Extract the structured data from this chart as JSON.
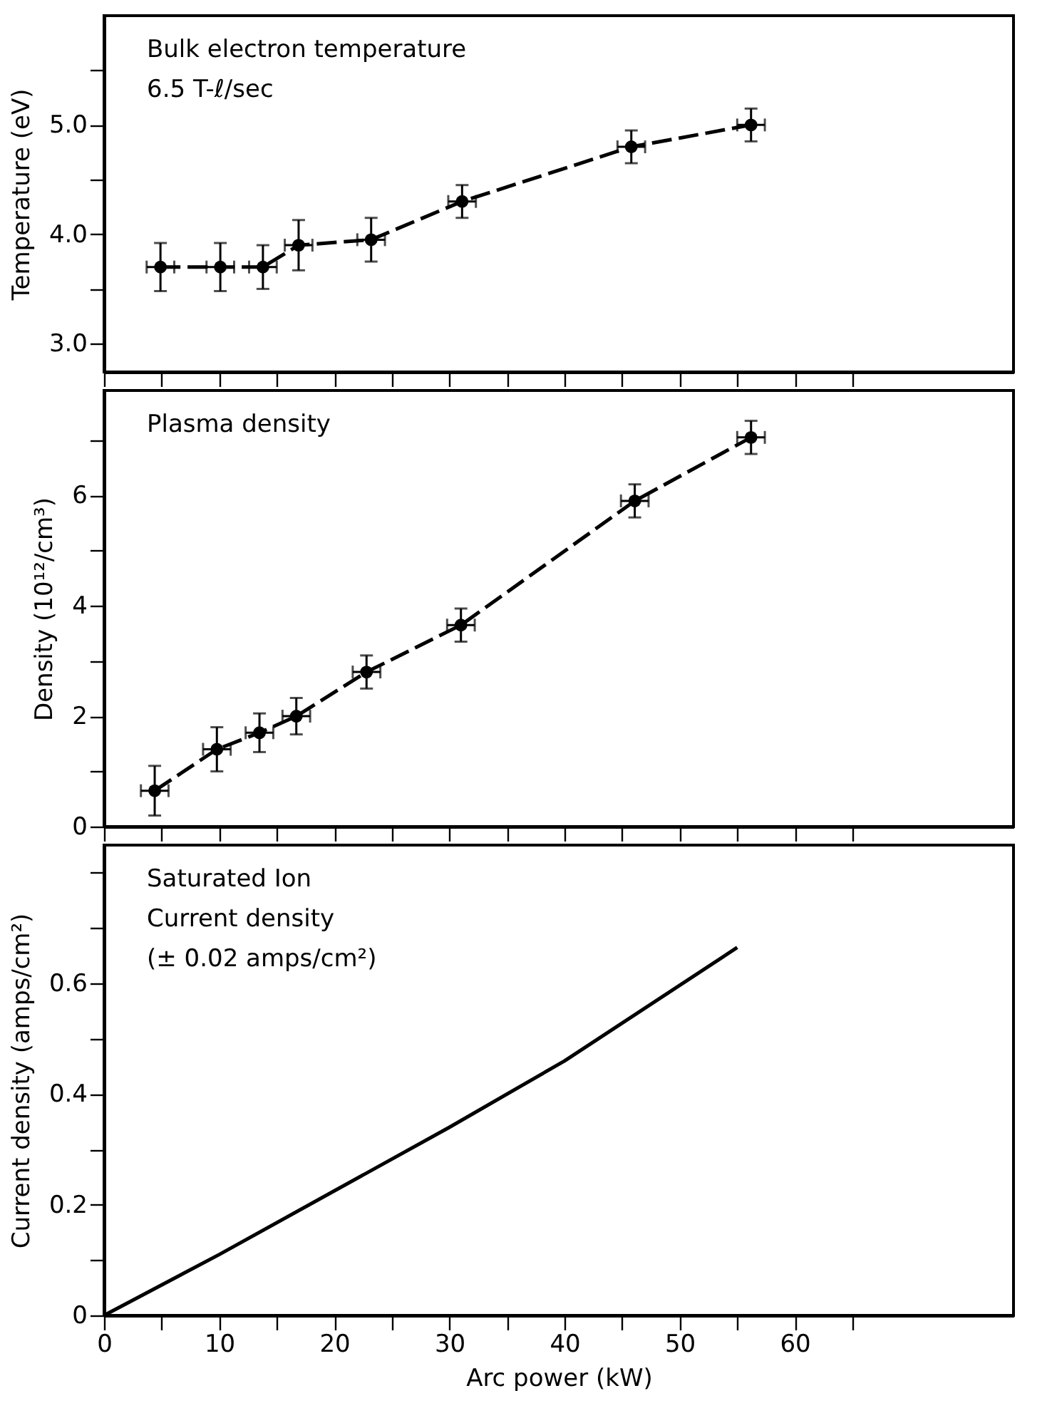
{
  "chart_data": [
    {
      "type": "line",
      "ylabel": "Temperature (eV)",
      "annotations": [
        "Bulk electron temperature",
        "6.5 T-ℓ/sec"
      ],
      "xlim": [
        0,
        79
      ],
      "xticks": [
        0,
        {
          "value": 5,
          "label": null
        },
        10,
        {
          "value": 15,
          "label": null
        },
        20,
        {
          "value": 25,
          "label": null
        },
        30,
        {
          "value": 35,
          "label": null
        },
        40,
        {
          "value": 45,
          "label": null
        },
        50,
        {
          "value": 55,
          "label": null
        },
        60,
        {
          "value": 65,
          "label": null
        }
      ],
      "ylim": [
        2.74,
        6.0
      ],
      "yticks": [
        {
          "value": 3.0,
          "label": "3.0"
        },
        {
          "value": 3.5,
          "label": null
        },
        {
          "value": 4.0,
          "label": "4.0"
        },
        {
          "value": 4.5,
          "label": null
        },
        {
          "value": 5.0,
          "label": "5.0"
        },
        {
          "value": 5.5,
          "label": null
        }
      ],
      "tick_labels": "y",
      "marker": "circle",
      "line_style": "dashed",
      "series": [
        {
          "color": "#000000",
          "x": [
            4.9,
            10.1,
            13.8,
            16.9,
            23.2,
            31.1,
            45.8,
            56.2
          ],
          "values": [
            3.7,
            3.7,
            3.7,
            3.9,
            3.95,
            4.3,
            4.8,
            5.0
          ],
          "errors": [
            0.22,
            0.22,
            0.2,
            0.23,
            0.2,
            0.15,
            0.15,
            0.15
          ],
          "xerrors": [
            1.2,
            1.2,
            1.2,
            1.2,
            1.2,
            1.2,
            1.2,
            1.2
          ]
        }
      ]
    },
    {
      "type": "line",
      "ylabel": "Density  (10¹²/cm³)",
      "annotations": [
        "Plasma density"
      ],
      "xlim": [
        0,
        79
      ],
      "xticks": [
        0,
        {
          "value": 5,
          "label": null
        },
        10,
        {
          "value": 15,
          "label": null
        },
        20,
        {
          "value": 25,
          "label": null
        },
        30,
        {
          "value": 35,
          "label": null
        },
        40,
        {
          "value": 45,
          "label": null
        },
        50,
        {
          "value": 55,
          "label": null
        },
        60,
        {
          "value": 65,
          "label": null
        }
      ],
      "ylim": [
        0,
        7.9
      ],
      "yticks": [
        0,
        {
          "value": 1,
          "label": null
        },
        2,
        {
          "value": 3,
          "label": null
        },
        4,
        {
          "value": 5,
          "label": null
        },
        6,
        {
          "value": 7,
          "label": null
        }
      ],
      "tick_labels": "y",
      "marker": "circle",
      "line_style": "dashed",
      "series": [
        {
          "color": "#000000",
          "x": [
            4.4,
            9.8,
            13.5,
            16.7,
            22.8,
            31.0,
            46.1,
            56.2
          ],
          "values": [
            0.65,
            1.4,
            1.7,
            2.0,
            2.8,
            3.65,
            5.9,
            7.05
          ],
          "errors": [
            0.45,
            0.4,
            0.35,
            0.33,
            0.3,
            0.3,
            0.3,
            0.3
          ],
          "xerrors": [
            1.2,
            1.2,
            1.2,
            1.2,
            1.2,
            1.2,
            1.2,
            1.2
          ]
        }
      ]
    },
    {
      "type": "line",
      "xlabel": "Arc power (kW)",
      "ylabel": "Current density (amps/cm²)",
      "annotations": [
        "Saturated Ion",
        "Current density",
        "(± 0.02 amps/cm²)"
      ],
      "xlim": [
        0,
        79
      ],
      "xticks": [
        0,
        {
          "value": 5,
          "label": null
        },
        10,
        {
          "value": 15,
          "label": null
        },
        20,
        {
          "value": 25,
          "label": null
        },
        30,
        {
          "value": 35,
          "label": null
        },
        40,
        {
          "value": 45,
          "label": null
        },
        50,
        {
          "value": 55,
          "label": null
        },
        60,
        {
          "value": 65,
          "label": null
        }
      ],
      "ylim": [
        0,
        0.85
      ],
      "yticks": [
        0,
        {
          "value": 0.1,
          "label": null
        },
        {
          "value": 0.2,
          "label": "0.2"
        },
        {
          "value": 0.3,
          "label": null
        },
        {
          "value": 0.4,
          "label": "0.4"
        },
        {
          "value": 0.5,
          "label": null
        },
        {
          "value": 0.6,
          "label": "0.6"
        },
        {
          "value": 0.7,
          "label": null
        },
        {
          "value": 0.8,
          "label": null
        }
      ],
      "line_style": "solid",
      "series": [
        {
          "color": "#000000",
          "x": [
            0,
            10,
            20,
            30,
            40,
            55
          ],
          "values": [
            0,
            0.11,
            0.225,
            0.34,
            0.46,
            0.665
          ]
        }
      ]
    }
  ]
}
